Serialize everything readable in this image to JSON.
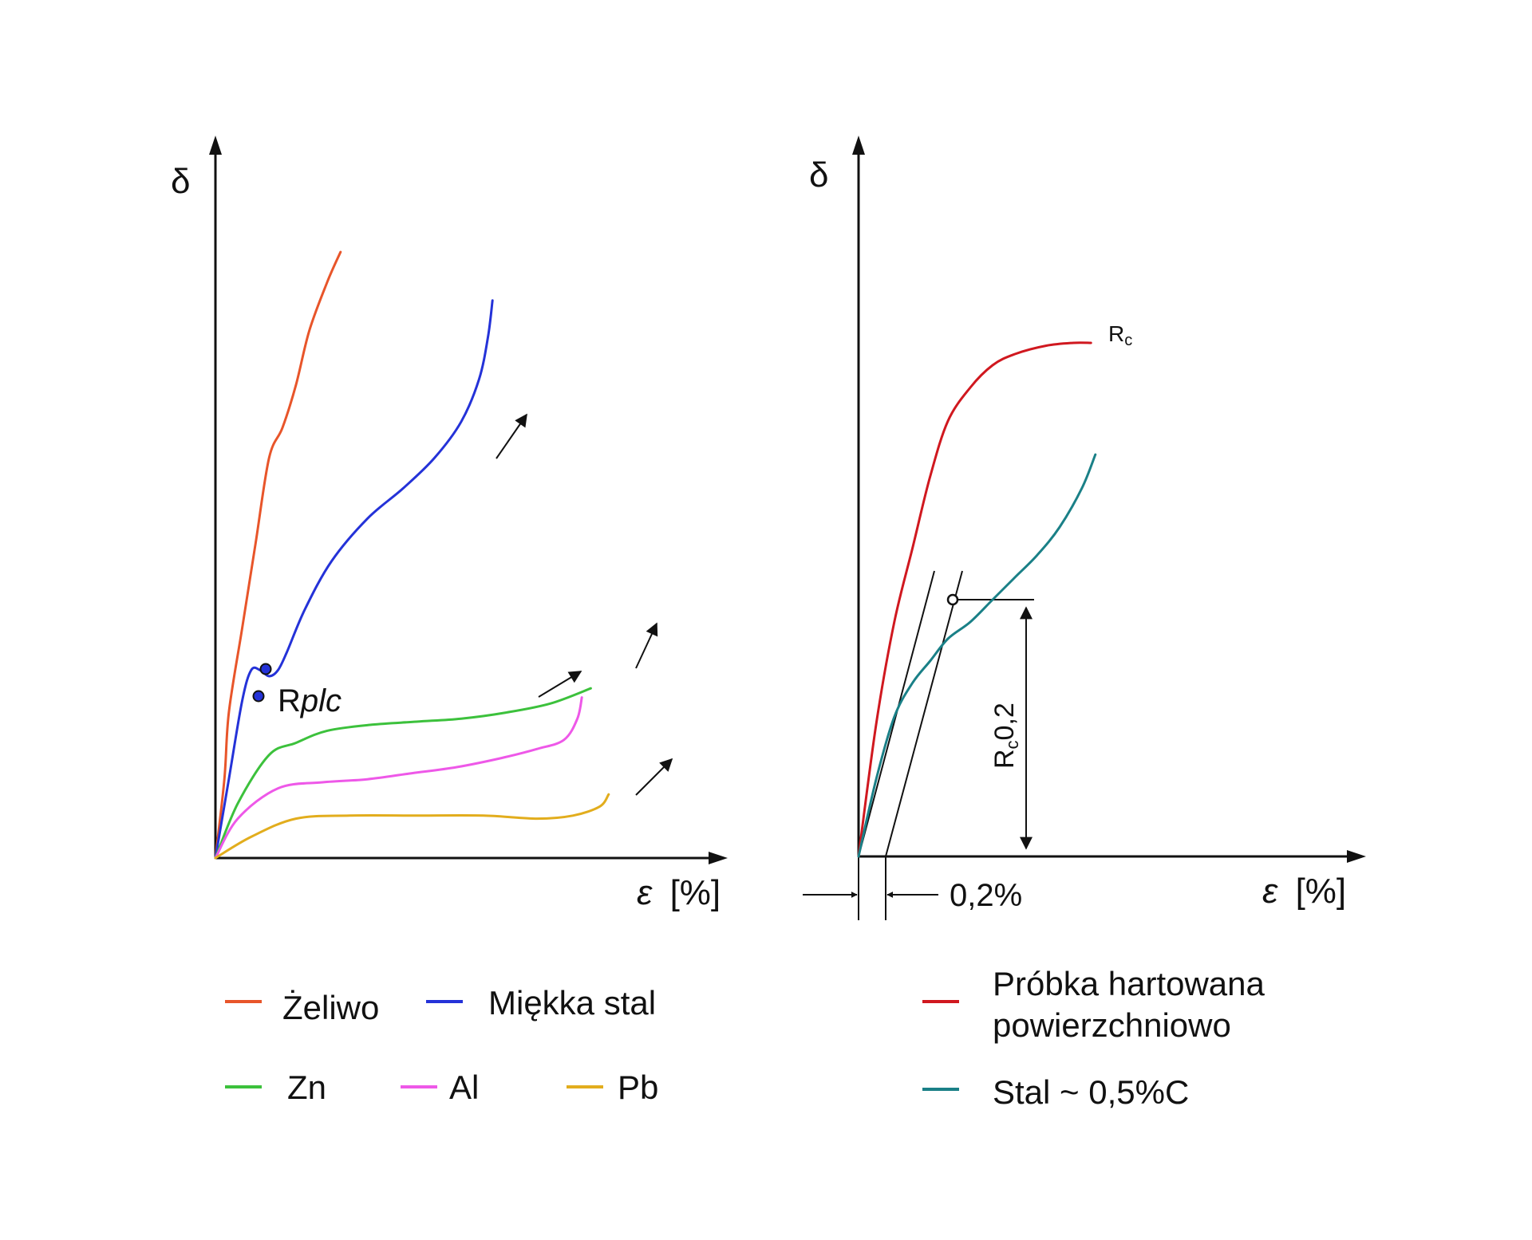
{
  "chart_data": [
    {
      "type": "line",
      "title": "",
      "ylabel": "δ",
      "xlabel_symbol": "ε",
      "xlabel_unit": "[%]",
      "xlim": [
        0,
        100
      ],
      "ylim": [
        0,
        100
      ],
      "grid": false,
      "legend_position": "bottom",
      "annotation": {
        "prefix": "R",
        "italic": "plc",
        "marker": "Rplc"
      },
      "series": [
        {
          "name": "Żeliwo",
          "color": "#e8552a",
          "x": [
            0,
            2,
            3,
            6,
            9,
            12,
            15,
            18,
            21,
            25,
            28
          ],
          "y": [
            0,
            13,
            24,
            38,
            52,
            66,
            71,
            78,
            87,
            95,
            100
          ]
        },
        {
          "name": "Miękka stal",
          "color": "#2432d8",
          "x": [
            0,
            3,
            6,
            8,
            10,
            12,
            14,
            16,
            20,
            26,
            34,
            42,
            49,
            55,
            59,
            61,
            62
          ],
          "y": [
            0,
            13,
            26,
            31,
            31,
            30,
            31,
            34,
            41,
            49,
            56,
            61,
            66,
            72,
            79,
            86,
            92
          ]
        },
        {
          "name": "Zn",
          "color": "#3cc13c",
          "x": [
            0,
            5,
            12,
            18,
            25,
            35,
            45,
            55,
            65,
            75,
            84
          ],
          "y": [
            0,
            9,
            17,
            19,
            21,
            22,
            22.5,
            23,
            24,
            25.5,
            28
          ]
        },
        {
          "name": "Al",
          "color": "#ee58e8",
          "x": [
            0,
            5,
            14,
            24,
            34,
            44,
            54,
            64,
            72,
            78,
            81,
            82
          ],
          "y": [
            0,
            6.5,
            11.5,
            12.5,
            13,
            14,
            15,
            16.5,
            18,
            19.5,
            23,
            26.5
          ]
        },
        {
          "name": "Pb",
          "color": "#e2ad1d",
          "x": [
            0,
            8,
            18,
            30,
            45,
            60,
            72,
            80,
            86,
            88
          ],
          "y": [
            0,
            3.5,
            6.5,
            7,
            7,
            7,
            6.5,
            7,
            8.5,
            10.5
          ]
        }
      ]
    },
    {
      "type": "line",
      "title": "",
      "ylabel": "δ",
      "xlabel_symbol": "ε",
      "xlabel_unit": "[%]",
      "xlim": [
        0,
        100
      ],
      "ylim": [
        0,
        100
      ],
      "grid": false,
      "legend_position": "bottom",
      "offset_label": "0,2%",
      "annotations": [
        {
          "name": "Rc",
          "main": "R",
          "sub": "c",
          "rest": ""
        },
        {
          "name": "Rc0,2",
          "main": "R",
          "sub": "c",
          "rest": "0,2"
        }
      ],
      "series": [
        {
          "name": "Próbka hartowana\npowierzchniowo",
          "color": "#d0181f",
          "x": [
            0,
            4,
            8,
            12,
            16,
            20,
            25,
            30,
            35,
            42,
            48,
            52
          ],
          "y": [
            0,
            24,
            42,
            55,
            68,
            78,
            84,
            88,
            90,
            91.5,
            92,
            92
          ]
        },
        {
          "name": "Stal ~ 0,5%C",
          "color": "#1a8087",
          "x": [
            0,
            4,
            8,
            12,
            16,
            20,
            25,
            30,
            35,
            40,
            45,
            50,
            53
          ],
          "y": [
            0,
            14,
            25,
            31,
            35,
            39,
            42,
            46,
            50,
            54,
            59,
            66,
            72
          ]
        }
      ]
    }
  ],
  "legend_left": {
    "row1": [
      "Żeliwo",
      "Miękka stal"
    ],
    "row2": [
      "Zn",
      "Al",
      "Pb"
    ]
  },
  "legend_right": {
    "item1_line1": "Próbka hartowana",
    "item1_line2": "powierzchniowo",
    "item2": "Stal ~ 0,5%C"
  }
}
